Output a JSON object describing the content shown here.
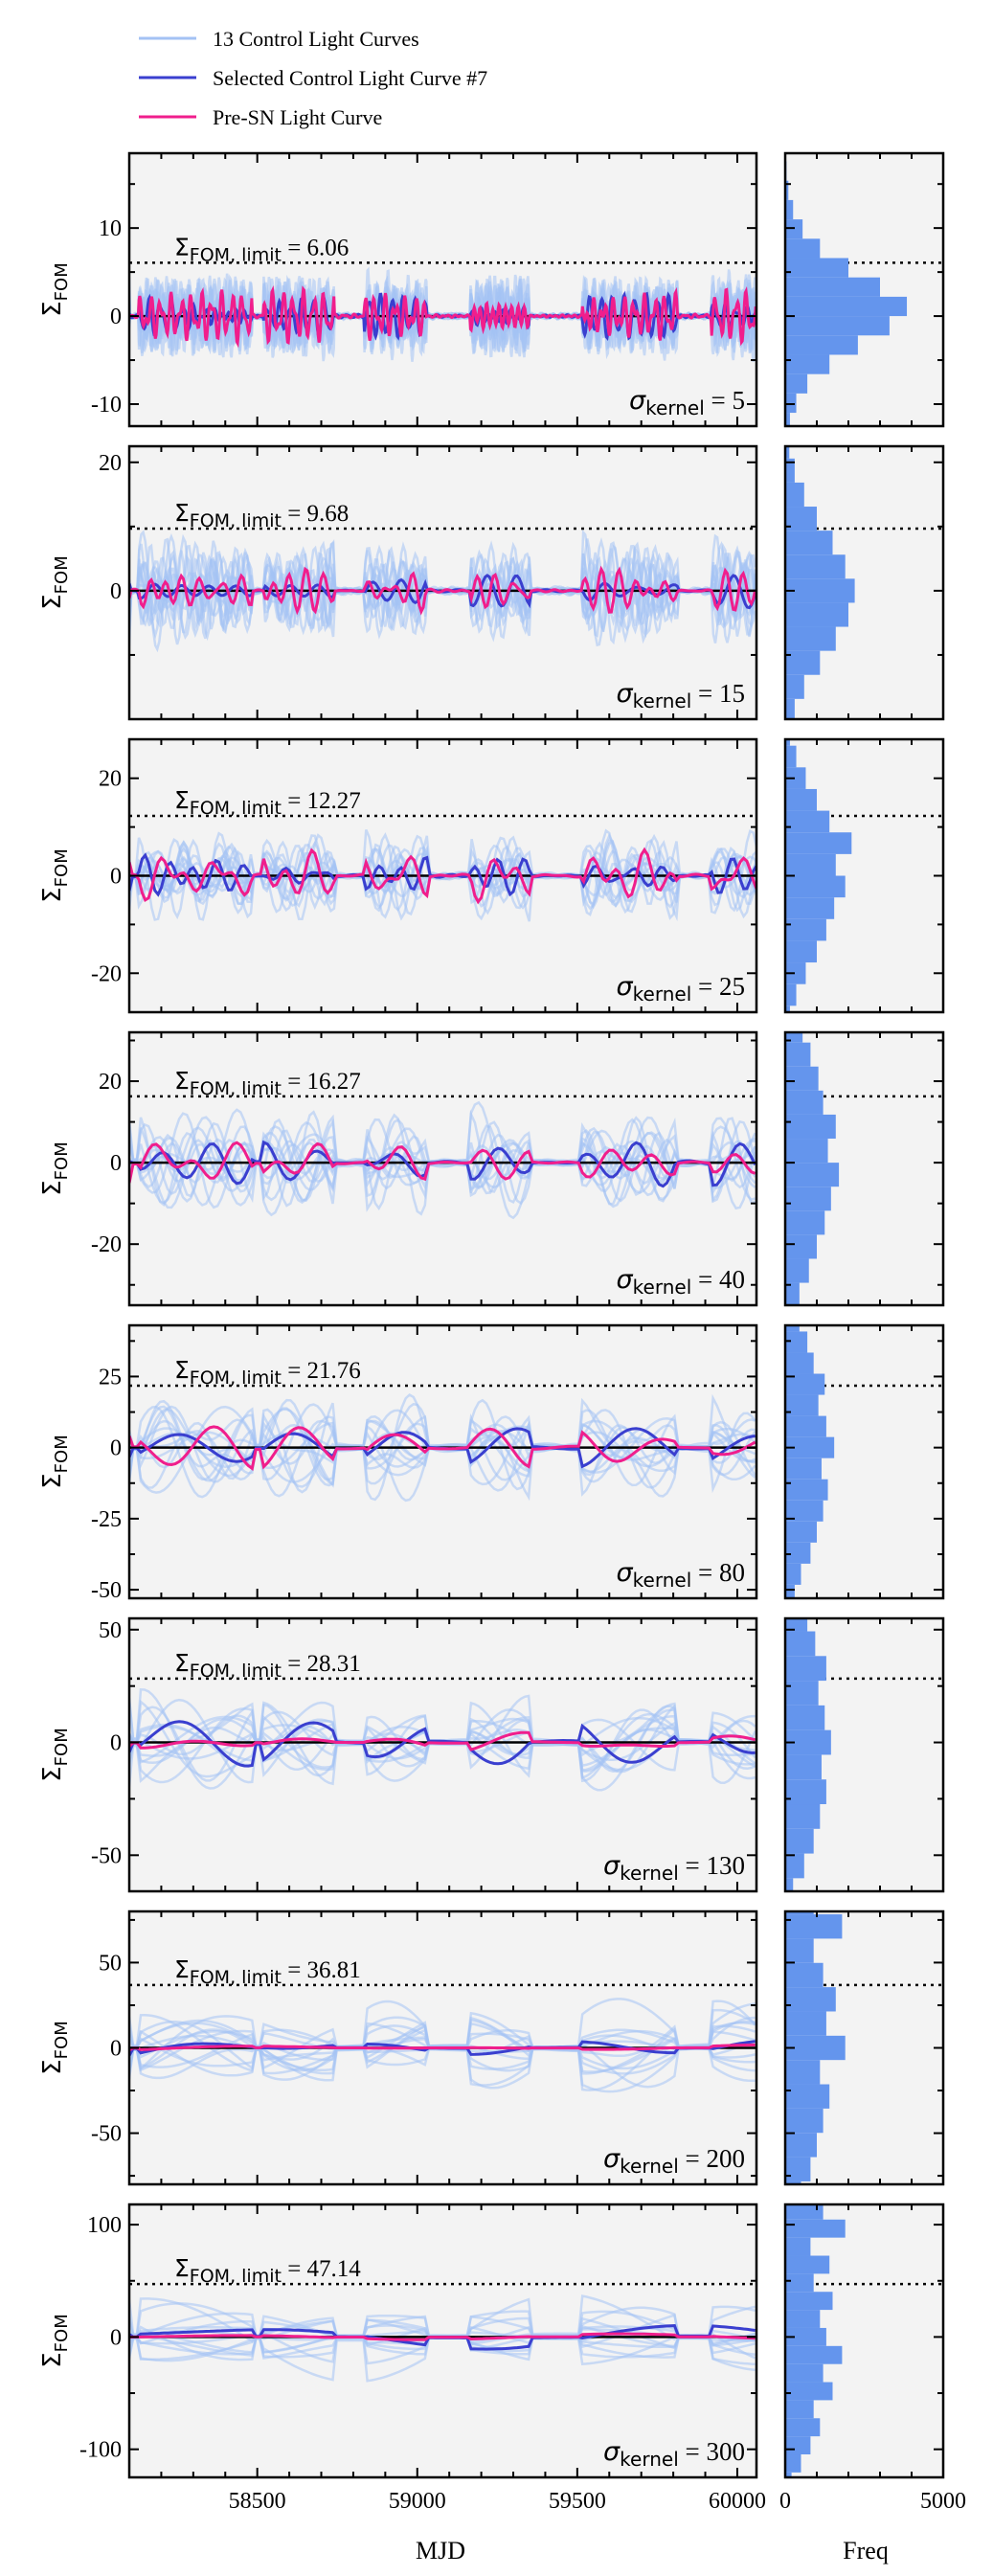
{
  "legend": {
    "position": "top-left, above panels",
    "entries": [
      {
        "label": "13 Control Light Curves",
        "color": "#a4c2f4"
      },
      {
        "label": "Selected Control Light Curve #7",
        "color": "#3a3fcf"
      },
      {
        "label": "Pre-SN Light Curve",
        "color": "#f01e8c"
      }
    ]
  },
  "colors": {
    "panel_bg": "#f3f3f3",
    "control": "#a4c2f4",
    "selected": "#3a3fcf",
    "presn": "#f01e8c",
    "hist": "#6495ed",
    "zero_line": "#000000",
    "limit_line": "#000000"
  },
  "chart_data": {
    "type": "line",
    "xlabel": "MJD",
    "xlim": [
      58100,
      60060
    ],
    "xticks": [
      58500,
      59000,
      59500,
      60000
    ],
    "ylabel_main": "Σ",
    "ylabel_sub": "FOM",
    "hist_xlabel": "Freq",
    "hist_xlim": [
      0,
      5000
    ],
    "hist_xticks": [
      0,
      5000
    ],
    "grid": false,
    "data_gaps": [
      [
        58100,
        58130
      ],
      [
        58485,
        58520
      ],
      [
        58740,
        58835
      ],
      [
        59030,
        59165
      ],
      [
        59350,
        59515
      ],
      [
        59815,
        59920
      ]
    ],
    "panels": [
      {
        "kernel": 5,
        "limit": 6.06,
        "limit_label": "6.06",
        "kernel_label": "5",
        "ylim": [
          -12.5,
          18.5
        ],
        "yticks": [
          -10,
          0,
          10
        ],
        "curves": {
          "control_amp": 3.5,
          "selected_amp": 2.2,
          "presn_amp": 2.4,
          "wl": 28
        },
        "hist": [
          20,
          60,
          150,
          350,
          700,
          1400,
          2300,
          3300,
          3850,
          3000,
          2000,
          1100,
          550,
          250,
          100,
          40
        ]
      },
      {
        "kernel": 15,
        "limit": 9.68,
        "limit_label": "9.68",
        "kernel_label": "15",
        "ylim": [
          -20,
          22.5
        ],
        "yticks": [
          0,
          20
        ],
        "curves": {
          "control_amp": 6,
          "selected_amp": 2.6,
          "presn_amp": 3.5,
          "wl": 75
        },
        "hist": [
          40,
          120,
          300,
          600,
          1100,
          1600,
          2000,
          2200,
          1900,
          1500,
          1000,
          600,
          300,
          130,
          50
        ]
      },
      {
        "kernel": 25,
        "limit": 12.27,
        "limit_label": "12.27",
        "kernel_label": "25",
        "ylim": [
          -28,
          28
        ],
        "yticks": [
          -20,
          0,
          20
        ],
        "curves": {
          "control_amp": 7,
          "selected_amp": 3.5,
          "presn_amp": 4,
          "wl": 120
        },
        "hist": [
          60,
          150,
          350,
          650,
          1000,
          1300,
          1550,
          1900,
          1600,
          2100,
          1400,
          1000,
          650,
          350,
          150,
          60
        ]
      },
      {
        "kernel": 40,
        "limit": 16.27,
        "limit_label": "16.27",
        "kernel_label": "40",
        "ylim": [
          -35,
          32
        ],
        "yticks": [
          -20,
          0,
          20
        ],
        "curves": {
          "control_amp": 10,
          "selected_amp": 5,
          "presn_amp": 5,
          "wl": 190
        },
        "hist": [
          80,
          200,
          450,
          750,
          1000,
          1250,
          1450,
          1700,
          1350,
          1600,
          1200,
          1050,
          800,
          550,
          300,
          120
        ]
      },
      {
        "kernel": 80,
        "limit": 21.76,
        "limit_label": "21.76",
        "kernel_label": "80",
        "ylim": [
          -53,
          43
        ],
        "yticks": [
          -50,
          -25,
          0,
          25
        ],
        "curves": {
          "control_amp": 13,
          "selected_amp": 7,
          "presn_amp": 6,
          "wl": 330
        },
        "hist": [
          100,
          300,
          500,
          800,
          1000,
          1200,
          1350,
          1150,
          1550,
          1300,
          1050,
          1250,
          900,
          700,
          450,
          250,
          100
        ]
      },
      {
        "kernel": 130,
        "limit": 28.31,
        "limit_label": "28.31",
        "kernel_label": "130",
        "ylim": [
          -66,
          55
        ],
        "yticks": [
          -50,
          0,
          50
        ],
        "curves": {
          "control_amp": 17,
          "selected_amp": 9,
          "presn_amp": 5,
          "wl": 520
        },
        "hist": [
          100,
          250,
          600,
          900,
          1100,
          1300,
          1150,
          1450,
          1250,
          1050,
          1300,
          950,
          700,
          450,
          200
        ]
      },
      {
        "kernel": 200,
        "limit": 36.81,
        "limit_label": "36.81",
        "kernel_label": "200",
        "ylim": [
          -80,
          80
        ],
        "yticks": [
          -50,
          0,
          50
        ],
        "curves": {
          "control_amp": 22,
          "selected_amp": 10,
          "presn_amp": 3,
          "wl": 850
        },
        "hist": [
          300,
          500,
          800,
          1000,
          1200,
          1400,
          1100,
          1900,
          1300,
          1600,
          1200,
          900,
          1800,
          900,
          600
        ]
      },
      {
        "kernel": 300,
        "limit": 47.14,
        "limit_label": "47.14",
        "kernel_label": "300",
        "ylim": [
          -125,
          118
        ],
        "yticks": [
          -100,
          0,
          100
        ],
        "curves": {
          "control_amp": 28,
          "selected_amp": 9,
          "presn_amp": 2,
          "wl": 1300
        },
        "hist": [
          200,
          500,
          800,
          1100,
          900,
          1500,
          1200,
          1800,
          1300,
          1100,
          1500,
          900,
          1400,
          800,
          1900,
          1200,
          700
        ]
      }
    ]
  }
}
